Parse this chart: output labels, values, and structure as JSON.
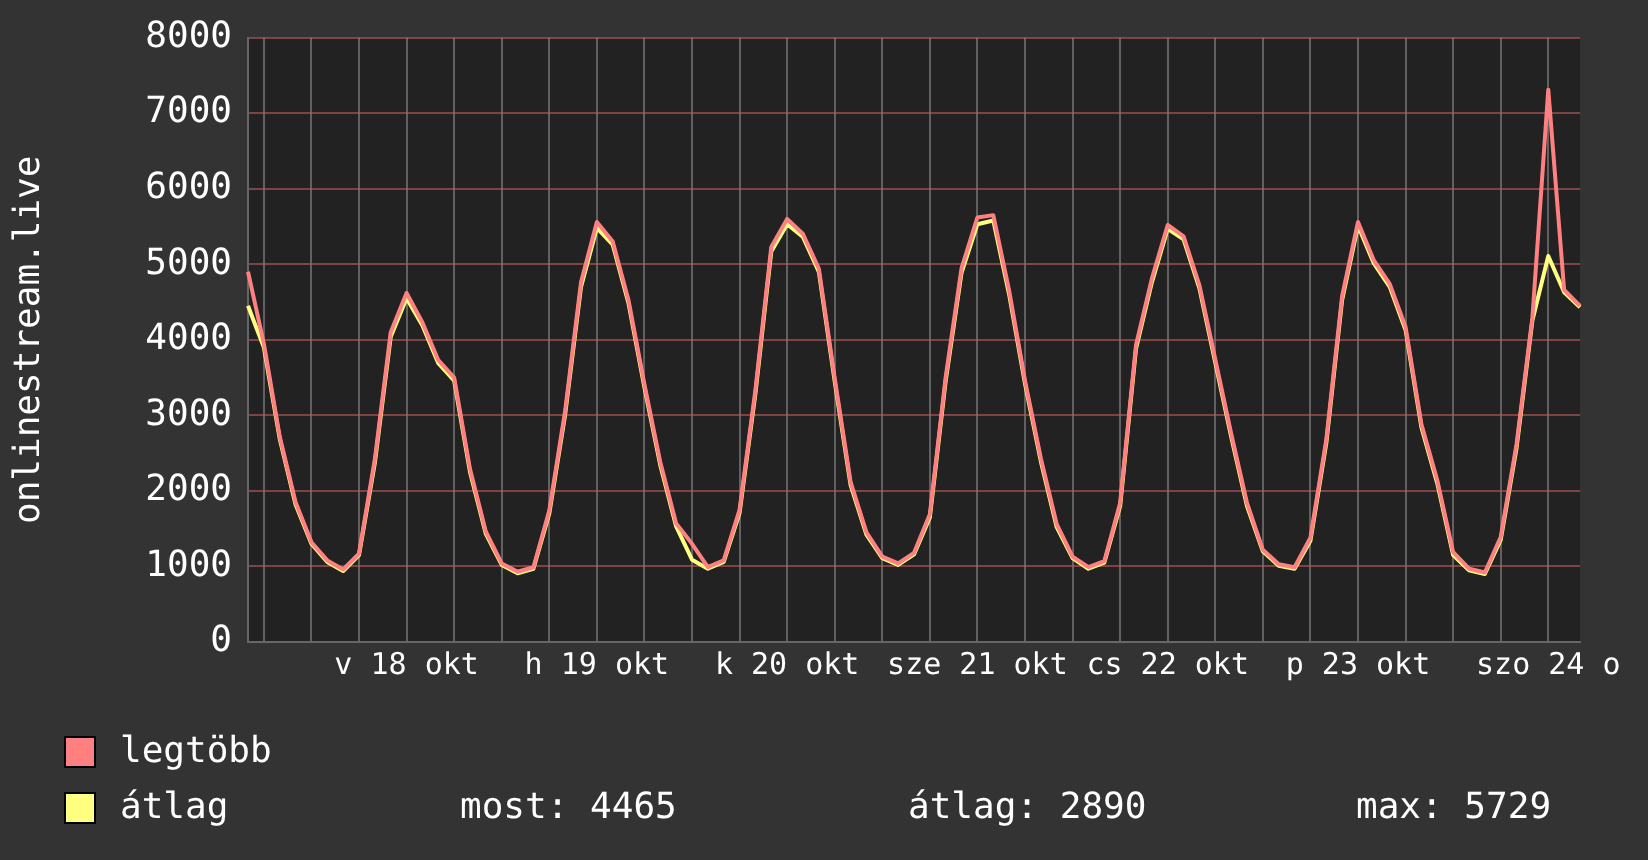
{
  "chart_data": {
    "type": "line",
    "ylabel": "onlinestream.live",
    "categories": [
      null,
      null,
      null,
      null,
      null,
      null,
      null,
      null,
      null,
      null,
      "v 18 okt",
      null,
      null,
      null,
      null,
      null,
      null,
      null,
      null,
      null,
      null,
      null,
      "h 19 okt",
      null,
      null,
      null,
      null,
      null,
      null,
      null,
      null,
      null,
      null,
      null,
      "k 20 okt",
      null,
      null,
      null,
      null,
      null,
      null,
      null,
      null,
      null,
      null,
      null,
      "sze 21 okt",
      null,
      null,
      null,
      null,
      null,
      null,
      null,
      null,
      null,
      null,
      null,
      "cs 22 okt",
      null,
      null,
      null,
      null,
      null,
      null,
      null,
      null,
      null,
      null,
      null,
      "p 23 okt",
      null,
      null,
      null,
      null,
      null,
      null,
      null,
      null,
      null,
      null,
      null,
      "szo 24 o",
      null,
      null
    ],
    "ylim": [
      0,
      8000
    ],
    "yticks": [
      0,
      1000,
      2000,
      3000,
      4000,
      5000,
      6000,
      7000,
      8000
    ],
    "grid": true,
    "legend": "bottom left",
    "marker": "none",
    "line_style": "solid",
    "series": [
      {
        "name": "legtöbb",
        "color": "#ff8080",
        "values": [
          4900,
          3950,
          2720,
          1850,
          1320,
          1080,
          960,
          1170,
          2420,
          4100,
          4620,
          4230,
          3730,
          3500,
          2290,
          1460,
          1040,
          930,
          990,
          1740,
          3060,
          4760,
          5560,
          5300,
          4520,
          3410,
          2380,
          1570,
          1300,
          990,
          1080,
          1750,
          3340,
          5230,
          5600,
          5400,
          4940,
          3490,
          2120,
          1450,
          1130,
          1040,
          1180,
          1690,
          3510,
          4950,
          5620,
          5650,
          4650,
          3460,
          2430,
          1560,
          1130,
          990,
          1070,
          1840,
          3930,
          4810,
          5520,
          5370,
          4720,
          3740,
          2760,
          1840,
          1220,
          1030,
          990,
          1380,
          2680,
          4580,
          5560,
          5050,
          4740,
          4170,
          2880,
          2140,
          1190,
          970,
          920,
          1390,
          2620,
          4300,
          7310,
          4660,
          4450
        ]
      },
      {
        "name": "átlag",
        "color": "#ffff80",
        "values": [
          4450,
          3900,
          2690,
          1820,
          1300,
          1060,
          940,
          1150,
          2370,
          4040,
          4550,
          4190,
          3690,
          3460,
          2250,
          1430,
          1020,
          910,
          970,
          1700,
          3010,
          4700,
          5480,
          5260,
          4480,
          3370,
          2340,
          1530,
          1090,
          970,
          1060,
          1710,
          3290,
          5170,
          5530,
          5360,
          4900,
          3450,
          2080,
          1420,
          1110,
          1020,
          1160,
          1650,
          3460,
          4890,
          5530,
          5580,
          4600,
          3420,
          2390,
          1520,
          1110,
          970,
          1050,
          1800,
          3880,
          4760,
          5470,
          5330,
          4680,
          3700,
          2720,
          1800,
          1200,
          1010,
          970,
          1340,
          2630,
          4530,
          5510,
          5010,
          4700,
          4130,
          2840,
          2100,
          1150,
          950,
          900,
          1350,
          2570,
          4260,
          5110,
          4630,
          4430
        ]
      }
    ],
    "annotations": [
      "most: 4465",
      "átlag: 2890",
      "max: 5729"
    ]
  }
}
